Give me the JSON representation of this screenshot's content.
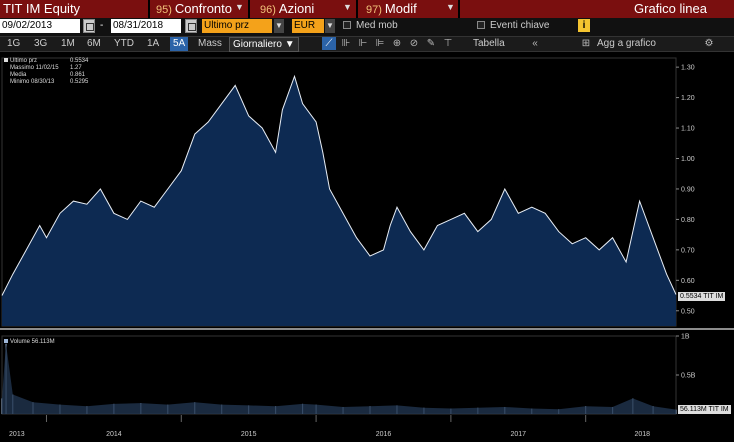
{
  "topbar": {
    "ticker": "TIT IM Equity",
    "items": [
      {
        "num": "95)",
        "label": "Confronto"
      },
      {
        "num": "96)",
        "label": "Azioni"
      },
      {
        "num": "97)",
        "label": "Modif"
      }
    ],
    "chart_type_button": "Grafico linea"
  },
  "controls": {
    "start_date": "09/02/2013",
    "date_sep": "-",
    "end_date": "08/31/2018",
    "field": "Ultimo prz",
    "currency": "EUR",
    "moving_avg_label": "Med mob",
    "events_label": "Eventi chiave",
    "info_icon": "i"
  },
  "toolbar": {
    "periods": [
      "1G",
      "3G",
      "1M",
      "6M",
      "YTD",
      "1A",
      "5A",
      "Mass"
    ],
    "active_period": "5A",
    "frequency": "Giornaliero ▼",
    "table_label": "Tabella",
    "collapse_icon": "«",
    "add_label": "Agg a grafico",
    "settings_icon": "⚙"
  },
  "legend": {
    "rows": [
      {
        "label": "Ultimo prz",
        "value": "0.5534"
      },
      {
        "label": "Massimo 11/02/15",
        "value": "1.27"
      },
      {
        "label": "Media",
        "value": "0.861"
      },
      {
        "label": "Minimo 08/30/13",
        "value": "0.5295"
      }
    ],
    "volume_label": "Volume 56.113M"
  },
  "tags": {
    "price": "0.5534 TIT IM",
    "volume": "56.113M TIT IM"
  },
  "colors": {
    "topbar": "#7a0f0f",
    "accent_orange": "#f4a21a",
    "active_blue": "#2b63a8",
    "area_fill": "#0d2a52",
    "line": "#e8eef6"
  },
  "chart_data": {
    "type": "area",
    "price_series": {
      "name": "Ultimo prz",
      "x": [
        2013.67,
        2013.75,
        2013.85,
        2013.95,
        2014.0,
        2014.1,
        2014.2,
        2014.3,
        2014.4,
        2014.5,
        2014.6,
        2014.7,
        2014.8,
        2014.9,
        2015.0,
        2015.1,
        2015.2,
        2015.3,
        2015.4,
        2015.5,
        2015.6,
        2015.7,
        2015.75,
        2015.84,
        2015.9,
        2016.0,
        2016.05,
        2016.1,
        2016.2,
        2016.3,
        2016.4,
        2016.5,
        2016.55,
        2016.6,
        2016.7,
        2016.8,
        2016.9,
        2017.0,
        2017.1,
        2017.2,
        2017.3,
        2017.4,
        2017.5,
        2017.6,
        2017.7,
        2017.8,
        2017.9,
        2018.0,
        2018.1,
        2018.2,
        2018.3,
        2018.4,
        2018.5,
        2018.6,
        2018.67
      ],
      "y": [
        0.55,
        0.62,
        0.7,
        0.78,
        0.74,
        0.82,
        0.86,
        0.85,
        0.9,
        0.82,
        0.8,
        0.86,
        0.84,
        0.9,
        0.96,
        1.08,
        1.12,
        1.18,
        1.24,
        1.14,
        1.1,
        1.02,
        1.16,
        1.27,
        1.18,
        1.12,
        1.02,
        0.9,
        0.82,
        0.74,
        0.68,
        0.7,
        0.78,
        0.84,
        0.76,
        0.7,
        0.78,
        0.8,
        0.82,
        0.76,
        0.8,
        0.9,
        0.82,
        0.84,
        0.82,
        0.76,
        0.72,
        0.74,
        0.7,
        0.74,
        0.66,
        0.86,
        0.74,
        0.62,
        0.5534
      ]
    },
    "price_ticks": [
      "0.50",
      "0.60",
      "0.70",
      "0.80",
      "0.90",
      "1.00",
      "1.10",
      "1.20",
      "1.30"
    ],
    "price_ylim": [
      0.45,
      1.33
    ],
    "volume_ticks": [
      "1B",
      "0.5B"
    ],
    "volume_ylim": [
      0,
      1.0
    ],
    "volume_series": {
      "x": [
        2013.67,
        2013.7,
        2013.75,
        2013.9,
        2014.1,
        2014.3,
        2014.5,
        2014.7,
        2014.9,
        2015.1,
        2015.3,
        2015.5,
        2015.7,
        2015.9,
        2016.0,
        2016.2,
        2016.4,
        2016.6,
        2016.8,
        2017.0,
        2017.2,
        2017.4,
        2017.6,
        2017.8,
        2018.0,
        2018.2,
        2018.35,
        2018.5,
        2018.67
      ],
      "y": [
        0.2,
        0.9,
        0.25,
        0.15,
        0.12,
        0.1,
        0.13,
        0.14,
        0.12,
        0.15,
        0.12,
        0.11,
        0.1,
        0.13,
        0.12,
        0.09,
        0.1,
        0.11,
        0.08,
        0.07,
        0.08,
        0.09,
        0.07,
        0.06,
        0.1,
        0.09,
        0.2,
        0.1,
        0.056
      ]
    },
    "x_labels": [
      "2013",
      "2014",
      "2015",
      "2016",
      "2017",
      "2018"
    ],
    "xlim": [
      2013.67,
      2018.67
    ],
    "grid": false
  }
}
